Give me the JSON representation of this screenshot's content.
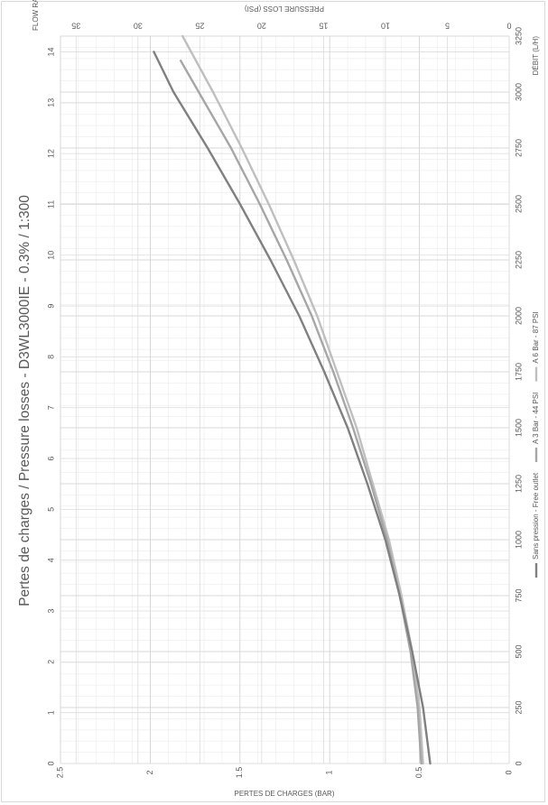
{
  "chart_data": {
    "type": "line",
    "title": "Pertes de charges / Pressure losses -  D3WL3000IE - 0.3% / 1:300",
    "x_primary": {
      "label": "DÉBIT (L/H)",
      "range": [
        0,
        3250
      ],
      "ticks": [
        "0",
        "250",
        "500",
        "750",
        "1000",
        "1250",
        "1500",
        "1750",
        "2000",
        "2250",
        "2500",
        "2750",
        "3000",
        "3250"
      ]
    },
    "x_secondary": {
      "label": "FLOW RATE (US GPM)",
      "range": [
        0,
        14.31
      ],
      "ticks": [
        "0",
        "1",
        "2",
        "3",
        "4",
        "5",
        "6",
        "7",
        "8",
        "9",
        "10",
        "11",
        "12",
        "13",
        "14"
      ]
    },
    "y_primary": {
      "label": "PERTES DE CHARGES (BAR)",
      "range": [
        0,
        2.5
      ],
      "ticks": [
        "0",
        "0.5",
        "1",
        "1.5",
        "2",
        "2.5"
      ]
    },
    "y_secondary": {
      "label": "PRESSURE LOSS (PSI)",
      "range": [
        0,
        36.26
      ],
      "ticks": [
        "0",
        "5",
        "10",
        "15",
        "20",
        "25",
        "30",
        "35"
      ]
    },
    "grid": true,
    "legend_position": "bottom",
    "series": [
      {
        "name": "Sans pression - Free outlet",
        "color": "#808080",
        "x": [
          0,
          250,
          500,
          750,
          1000,
          1250,
          1500,
          1750,
          2000,
          2250,
          2500,
          2750,
          3000,
          3180
        ],
        "y": [
          0.44,
          0.48,
          0.54,
          0.61,
          0.69,
          0.79,
          0.9,
          1.03,
          1.17,
          1.33,
          1.5,
          1.68,
          1.87,
          1.98
        ]
      },
      {
        "name": "A 3 Bar - 44 PSI",
        "color": "#a6a6a6",
        "x": [
          0,
          250,
          500,
          750,
          1000,
          1250,
          1500,
          1750,
          2000,
          2250,
          2500,
          2750,
          3000,
          3140
        ],
        "y": [
          0.49,
          0.51,
          0.55,
          0.61,
          0.68,
          0.77,
          0.87,
          0.98,
          1.1,
          1.24,
          1.39,
          1.55,
          1.73,
          1.83
        ]
      },
      {
        "name": "A 6 Bar - 87 PSI",
        "color": "#bfbfbf",
        "x": [
          0,
          250,
          500,
          750,
          1000,
          1250,
          1500,
          1750,
          2000,
          2250,
          2500,
          2750,
          3000,
          3250
        ],
        "y": [
          0.48,
          0.5,
          0.54,
          0.6,
          0.67,
          0.76,
          0.85,
          0.96,
          1.07,
          1.2,
          1.34,
          1.49,
          1.65,
          1.82
        ]
      }
    ]
  }
}
